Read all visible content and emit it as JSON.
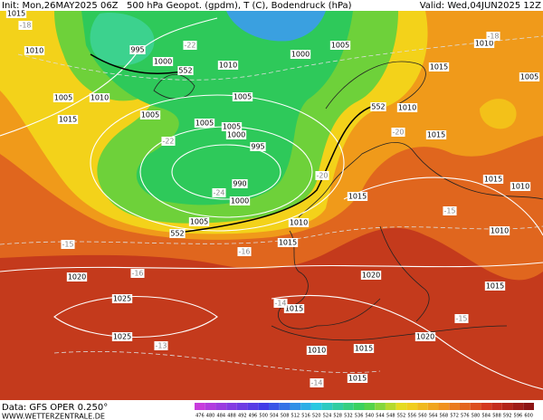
{
  "header": {
    "init": "Init: Mon,26MAY2025 06Z",
    "title": "500 hPa Geopot. (gpdm), T (C), Bodendruck (hPa)",
    "valid": "Valid: Wed,04JUN2025 12Z"
  },
  "footer": {
    "data": "Data: GFS OPER 0.250°",
    "site": "WWW.WETTERZENTRALE.DE"
  },
  "isobar_labels": [
    "1015",
    "1010",
    "995",
    "1000",
    "1010",
    "1005",
    "1000",
    "1005",
    "1005",
    "1005",
    "1010",
    "1005",
    "1015",
    "1005",
    "1000",
    "995",
    "990",
    "1000",
    "1005",
    "1010",
    "1015",
    "1015",
    "1010",
    "1015",
    "1015",
    "1010",
    "1005",
    "1015",
    "1010",
    "1010",
    "1015",
    "1020",
    "1020",
    "1025",
    "1025",
    "1020",
    "1015",
    "1010",
    "1015",
    "1015"
  ],
  "contour_552_labels": [
    "552",
    "552",
    "552"
  ],
  "temp_labels": [
    "-18",
    "-18",
    "-15",
    "-15",
    "-15",
    "-16",
    "-16",
    "-14",
    "-13",
    "-14",
    "-20",
    "-20",
    "-24",
    "-22",
    "-22"
  ],
  "colorbar": {
    "values": [
      476,
      480,
      484,
      488,
      492,
      496,
      500,
      504,
      508,
      512,
      516,
      520,
      524,
      528,
      532,
      536,
      540,
      544,
      548,
      552,
      556,
      560,
      564,
      568,
      572,
      576,
      580,
      584,
      588,
      592,
      596,
      600
    ]
  }
}
